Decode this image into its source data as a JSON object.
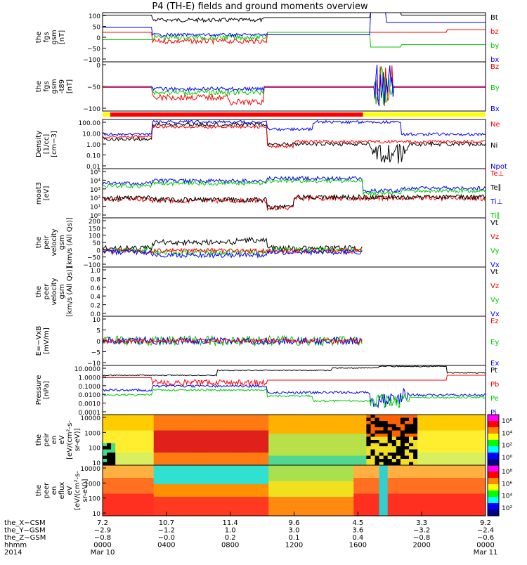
{
  "title": "P4 (TH-E) fields and ground moments overview",
  "colors": {
    "black": "#000000",
    "red": "#ff0000",
    "green": "#00cc00",
    "blue": "#0000ff",
    "yellow": "#ffff00"
  },
  "chart_data": [
    {
      "type": "line",
      "ylabel": [
        "the",
        "fgs",
        "gsm",
        "[nT]"
      ],
      "ylim": [
        -100,
        100
      ],
      "yticks": [
        "100",
        "50",
        "0",
        "−50",
        "−100"
      ],
      "legend": [
        {
          "name": "Bt",
          "color": "#000000"
        },
        {
          "name": "bz",
          "color": "#ff0000"
        },
        {
          "name": "by",
          "color": "#00cc00"
        },
        {
          "name": "bx",
          "color": "#0000ff"
        }
      ]
    },
    {
      "type": "line",
      "ylabel": [
        "the",
        "fgs",
        "gsm",
        "-t89",
        "[nT]"
      ],
      "ylim": [
        -120,
        40
      ],
      "yticks": [
        "0",
        "−50",
        "−100"
      ],
      "legend": [
        {
          "name": "Bz",
          "color": "#ff0000"
        },
        {
          "name": "By",
          "color": "#00cc00"
        },
        {
          "name": "Bx",
          "color": "#0000ff"
        }
      ]
    },
    {
      "type": "line",
      "ylabel": [
        "Density",
        "[1/cc]",
        "[cm−3]"
      ],
      "log": true,
      "yticks": [
        "100.00",
        "10.00",
        "1.00",
        "0.10",
        "0.01"
      ],
      "legend": [
        {
          "name": "Ne",
          "color": "#ff0000"
        },
        {
          "name": "Ni",
          "color": "#000000"
        },
        {
          "name": "Npot",
          "color": "#0000ff"
        }
      ]
    },
    {
      "type": "line",
      "ylabel": [
        "moat3",
        "[eV]"
      ],
      "log": true,
      "yticks": [
        "10⁵",
        "10⁴",
        "10³",
        "10²",
        "10¹",
        "10⁰"
      ],
      "legend": [
        {
          "name": "Te⊥",
          "color": "#ff0000"
        },
        {
          "name": "Te∥",
          "color": "#000000"
        },
        {
          "name": "Ti⊥",
          "color": "#0000ff"
        },
        {
          "name": "Ti∥",
          "color": "#00cc00"
        }
      ]
    },
    {
      "type": "line",
      "ylabel": [
        "the",
        "peir",
        "velocity",
        "gsm",
        "[km/s (All Qs)]"
      ],
      "ylim": [
        -100,
        200
      ],
      "yticks": [
        "200",
        "150",
        "100",
        "50",
        "0",
        "−50",
        "−100"
      ],
      "legend": [
        {
          "name": "Vt",
          "color": "#000000"
        },
        {
          "name": "Vz",
          "color": "#ff0000"
        },
        {
          "name": "Vy",
          "color": "#00cc00"
        },
        {
          "name": "Vx",
          "color": "#0000ff"
        }
      ]
    },
    {
      "type": "line",
      "ylabel": [
        "the",
        "peer",
        "velocity",
        "gsm",
        "[km/s (All Qs)]"
      ],
      "ylim": [
        0,
        1
      ],
      "yticks": [
        "1.0",
        "0.8",
        "0.6",
        "0.4",
        "0.2",
        "0.0"
      ],
      "legend": [
        {
          "name": "Vt",
          "color": "#000000"
        },
        {
          "name": "Vz",
          "color": "#ff0000"
        },
        {
          "name": "Vy",
          "color": "#00cc00"
        },
        {
          "name": "Vx",
          "color": "#0000ff"
        }
      ]
    },
    {
      "type": "line",
      "ylabel": [
        "E=−VxB",
        "[mV/m]"
      ],
      "ylim": [
        -10,
        10
      ],
      "yticks": [
        "10",
        "5",
        "0",
        "−5",
        "−10"
      ],
      "legend": [
        {
          "name": "Ez",
          "color": "#ff0000"
        },
        {
          "name": "Ey",
          "color": "#00cc00"
        },
        {
          "name": "Ex",
          "color": "#0000ff"
        }
      ]
    },
    {
      "type": "line",
      "ylabel": [
        "Pressure",
        "[nPa]"
      ],
      "log": true,
      "yticks": [
        "10.0000",
        "1.0000",
        "0.1000",
        "0.0100",
        "0.0010",
        "0.0001"
      ],
      "legend": [
        {
          "name": "Pt",
          "color": "#000000"
        },
        {
          "name": "Pb",
          "color": "#ff0000"
        },
        {
          "name": "Pe",
          "color": "#00cc00"
        },
        {
          "name": "Pi",
          "color": "#0000ff"
        }
      ]
    },
    {
      "type": "heatmap",
      "ylabel": [
        "the",
        "peir",
        "en",
        "eV",
        "[eV/(cm²-s-",
        "sr-eV)]"
      ],
      "yticks": [
        "10000",
        "1000",
        "100",
        "10"
      ],
      "colorbar": [
        "10⁶",
        "10⁴",
        "10²",
        "10⁰"
      ]
    },
    {
      "type": "heatmap",
      "ylabel": [
        "the",
        "peer",
        "en",
        "eflux",
        "eV",
        "[eV/(cm²-s-",
        "sr-eV)]"
      ],
      "yticks": [
        "10000",
        "1000",
        "100",
        "10"
      ],
      "colorbar": [
        "10⁸",
        "10⁶",
        "10⁴",
        "10²"
      ]
    }
  ],
  "xaxis": {
    "row_labels": [
      "the_X−CSM",
      "the_Y−GSM",
      "the_Z−GSM",
      "hhmm",
      "2014"
    ],
    "ticks": [
      {
        "v": [
          "7.2",
          "−2.9",
          "−0.8",
          "0000",
          "Mar 10"
        ]
      },
      {
        "v": [
          "10.7",
          "−1.2",
          "−0.0",
          "0400",
          ""
        ]
      },
      {
        "v": [
          "11.4",
          "1.0",
          "0.2",
          "0800",
          ""
        ]
      },
      {
        "v": [
          "9.6",
          "3.0",
          "0.1",
          "1200",
          ""
        ]
      },
      {
        "v": [
          "4.5",
          "3.6",
          "0.4",
          "1600",
          ""
        ]
      },
      {
        "v": [
          "3.3",
          "−3.2",
          "−0.8",
          "2000",
          ""
        ]
      },
      {
        "v": [
          "9.2",
          "−2.4",
          "−0.6",
          "0000",
          "Mar 11"
        ]
      }
    ]
  }
}
